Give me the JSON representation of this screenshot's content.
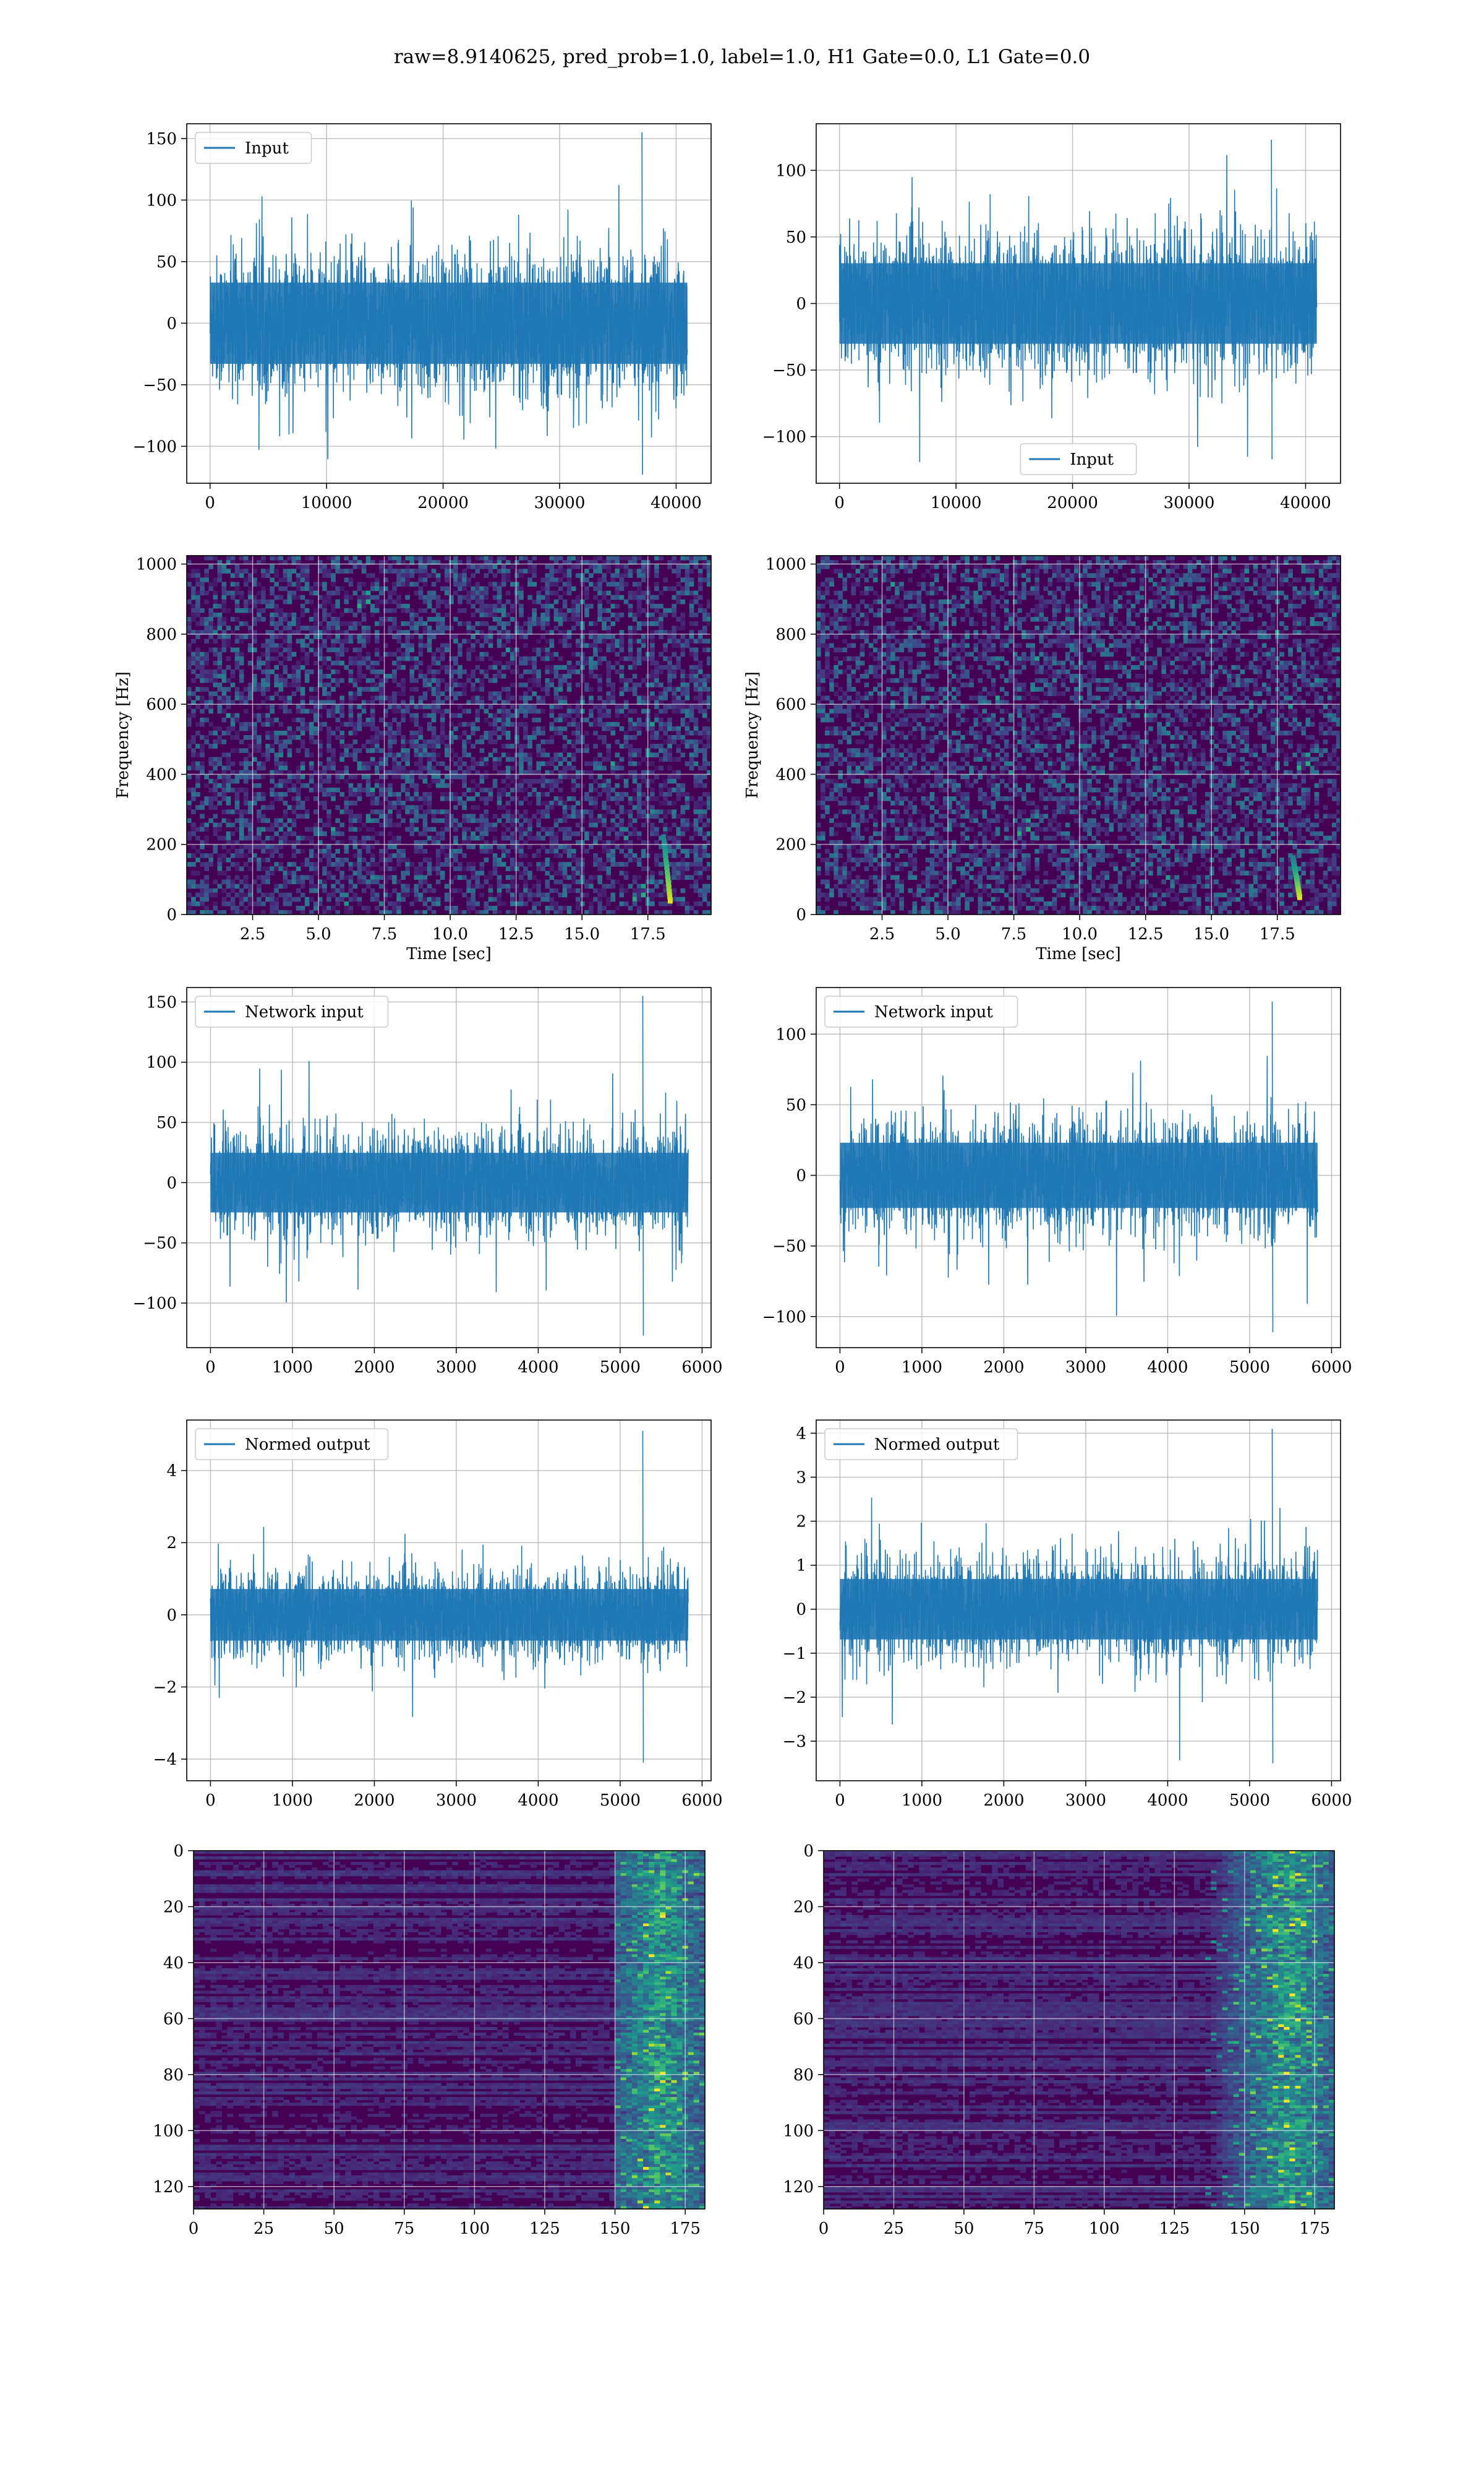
{
  "figure": {
    "suptitle": "raw=8.9140625, pred_prob=1.0, label=1.0, H1 Gate=0.0, L1 Gate=0.0"
  },
  "colors": {
    "line": "#1f77b4",
    "grid": "#b0b0b0",
    "viridis": [
      "#440154",
      "#482878",
      "#3e4a89",
      "#31688e",
      "#26828e",
      "#1f9e89",
      "#35b779",
      "#6ece58",
      "#b5de2b",
      "#fde725"
    ]
  },
  "chart_data": [
    {
      "type": "line",
      "panel": "row1-left",
      "series": [
        {
          "name": "Input",
          "x_range": [
            0,
            40960
          ],
          "amplitude": 60,
          "peak_positive": 155,
          "peak_negative": -123
        }
      ],
      "xlim": [
        -2000,
        43000
      ],
      "ylim": [
        -130,
        162
      ],
      "xticks": [
        0,
        10000,
        20000,
        30000,
        40000
      ],
      "yticks": [
        -100,
        -50,
        0,
        50,
        100,
        150
      ],
      "legend": "top-left",
      "grid": true
    },
    {
      "type": "line",
      "panel": "row1-right",
      "series": [
        {
          "name": "Input",
          "x_range": [
            0,
            40960
          ],
          "amplitude": 55,
          "peak_positive": 123,
          "peak_negative": -117
        }
      ],
      "xlim": [
        -2000,
        43000
      ],
      "ylim": [
        -135,
        135
      ],
      "xticks": [
        0,
        10000,
        20000,
        30000,
        40000
      ],
      "yticks": [
        -100,
        -50,
        0,
        50,
        100
      ],
      "legend": "bottom-center",
      "grid": true
    },
    {
      "type": "heatmap",
      "panel": "row2-left",
      "xlabel": "Time [sec]",
      "ylabel": "Frequency [Hz]",
      "xlim": [
        0,
        19.9
      ],
      "ylim": [
        0,
        1024
      ],
      "xticks": [
        2.5,
        5.0,
        7.5,
        10.0,
        12.5,
        15.0,
        17.5
      ],
      "xticklabels": [
        "2.5",
        "5.0",
        "7.5",
        "10.0",
        "12.5",
        "15.0",
        "17.5"
      ],
      "yticks": [
        0,
        200,
        400,
        600,
        800,
        1000
      ],
      "chirp": {
        "t": 18.1,
        "f_low": 40,
        "f_high": 220,
        "peak": "bright"
      },
      "colormap": "viridis",
      "grid": true
    },
    {
      "type": "heatmap",
      "panel": "row2-right",
      "xlabel": "Time [sec]",
      "ylabel": "Frequency [Hz]",
      "xlim": [
        0,
        19.9
      ],
      "ylim": [
        0,
        1024
      ],
      "xticks": [
        2.5,
        5.0,
        7.5,
        10.0,
        12.5,
        15.0,
        17.5
      ],
      "xticklabels": [
        "2.5",
        "5.0",
        "7.5",
        "10.0",
        "12.5",
        "15.0",
        "17.5"
      ],
      "yticks": [
        0,
        200,
        400,
        600,
        800,
        1000
      ],
      "chirp": {
        "t": 18.1,
        "f_low": 50,
        "f_high": 160,
        "peak": "bright"
      },
      "colormap": "viridis",
      "grid": true
    },
    {
      "type": "line",
      "panel": "row3-left",
      "series": [
        {
          "name": "Network input",
          "x_range": [
            0,
            5830
          ],
          "amplitude": 45,
          "peak_positive": 155,
          "peak_negative": -127
        }
      ],
      "xlim": [
        -290,
        6110
      ],
      "ylim": [
        -137,
        162
      ],
      "xticks": [
        0,
        1000,
        2000,
        3000,
        4000,
        5000,
        6000
      ],
      "yticks": [
        -100,
        -50,
        0,
        50,
        100,
        150
      ],
      "legend": "top-left",
      "grid": true
    },
    {
      "type": "line",
      "panel": "row3-right",
      "series": [
        {
          "name": "Network input",
          "x_range": [
            0,
            5830
          ],
          "amplitude": 42,
          "peak_positive": 123,
          "peak_negative": -111
        }
      ],
      "xlim": [
        -290,
        6110
      ],
      "ylim": [
        -122,
        133
      ],
      "xticks": [
        0,
        1000,
        2000,
        3000,
        4000,
        5000,
        6000
      ],
      "yticks": [
        -100,
        -50,
        0,
        50,
        100
      ],
      "legend": "top-left",
      "grid": true
    },
    {
      "type": "line",
      "panel": "row4-left",
      "series": [
        {
          "name": "Normed output",
          "x_range": [
            0,
            5830
          ],
          "amplitude": 1.3,
          "peak_positive": 5.1,
          "peak_negative": -4.1
        }
      ],
      "xlim": [
        -290,
        6110
      ],
      "ylim": [
        -4.6,
        5.4
      ],
      "xticks": [
        0,
        1000,
        2000,
        3000,
        4000,
        5000,
        6000
      ],
      "yticks": [
        -4,
        -2,
        0,
        2,
        4
      ],
      "legend": "top-left",
      "grid": true
    },
    {
      "type": "line",
      "panel": "row4-right",
      "series": [
        {
          "name": "Normed output",
          "x_range": [
            0,
            5830
          ],
          "amplitude": 1.25,
          "peak_positive": 4.1,
          "peak_negative": -3.5
        }
      ],
      "xlim": [
        -290,
        6110
      ],
      "ylim": [
        -3.9,
        4.3
      ],
      "xticks": [
        0,
        1000,
        2000,
        3000,
        4000,
        5000,
        6000
      ],
      "yticks": [
        -3,
        -2,
        -1,
        0,
        1,
        2,
        3,
        4
      ],
      "legend": "top-left",
      "grid": true
    },
    {
      "type": "heatmap",
      "panel": "row5-left",
      "rows": 128,
      "cols": 182,
      "xlim": [
        0,
        182
      ],
      "ylim": [
        128,
        0
      ],
      "xticks": [
        0,
        25,
        50,
        75,
        100,
        125,
        150,
        175
      ],
      "yticks": [
        0,
        20,
        40,
        60,
        80,
        100,
        120
      ],
      "active_columns": [
        150,
        182
      ],
      "hot_column": 165,
      "colormap": "viridis",
      "grid": true
    },
    {
      "type": "heatmap",
      "panel": "row5-right",
      "rows": 128,
      "cols": 182,
      "xlim": [
        0,
        182
      ],
      "ylim": [
        128,
        0
      ],
      "xticks": [
        0,
        25,
        50,
        75,
        100,
        125,
        150,
        175
      ],
      "yticks": [
        0,
        20,
        40,
        60,
        80,
        100,
        120
      ],
      "active_columns": [
        135,
        182
      ],
      "hot_column": 165,
      "colormap": "viridis",
      "grid": true
    }
  ]
}
